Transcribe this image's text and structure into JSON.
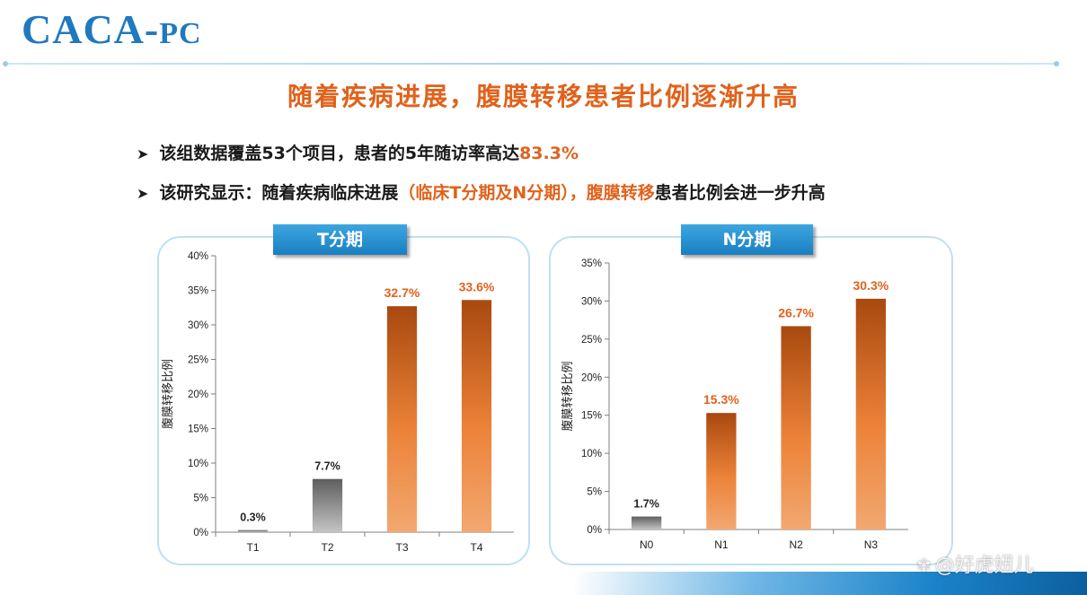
{
  "logo": {
    "main": "CACA-",
    "suffix": "PC"
  },
  "headline": "随着疾病进展，腹膜转移患者比例逐渐升高",
  "bullets": [
    {
      "text_before": "该组数据覆盖53个项目，患者的5年随访率高达",
      "highlight": "83.3%",
      "text_after": ""
    },
    {
      "text_before": "该研究显示：随着疾病临床进展",
      "highlight": "（临床T分期及N分期），腹膜转移",
      "text_after": "患者比例会进一步升高"
    }
  ],
  "bullet_icon": "arrow-bullet-icon",
  "watermark": {
    "icon": "butterfly-icon",
    "text": "@好虎妞儿"
  },
  "colors": {
    "accent": "#e0621c",
    "brand": "#1f79bf",
    "bar_gray": "#8a8a8a",
    "bar_orange": "#e2701f"
  },
  "chart_data": [
    {
      "type": "bar",
      "title": "T分期",
      "categories": [
        "T1",
        "T2",
        "T3",
        "T4"
      ],
      "values": [
        0.3,
        7.7,
        32.7,
        33.6
      ],
      "labels": [
        "0.3%",
        "7.7%",
        "32.7%",
        "33.6%"
      ],
      "bar_colors": [
        "gray",
        "gray",
        "orange",
        "orange"
      ],
      "ylabel": "腹膜转移比例",
      "ylim": [
        0,
        40
      ],
      "yticks": [
        "0%",
        "5%",
        "10%",
        "15%",
        "20%",
        "25%",
        "30%",
        "35%",
        "40%"
      ],
      "grid": false
    },
    {
      "type": "bar",
      "title": "N分期",
      "categories": [
        "N0",
        "N1",
        "N2",
        "N3"
      ],
      "values": [
        1.7,
        15.3,
        26.7,
        30.3
      ],
      "labels": [
        "1.7%",
        "15.3%",
        "26.7%",
        "30.3%"
      ],
      "bar_colors": [
        "gray",
        "orange",
        "orange",
        "orange"
      ],
      "ylabel": "腹膜转移比例",
      "ylim": [
        0,
        35
      ],
      "yticks": [
        "0%",
        "5%",
        "10%",
        "15%",
        "20%",
        "25%",
        "30%",
        "35%"
      ],
      "grid": false
    }
  ]
}
